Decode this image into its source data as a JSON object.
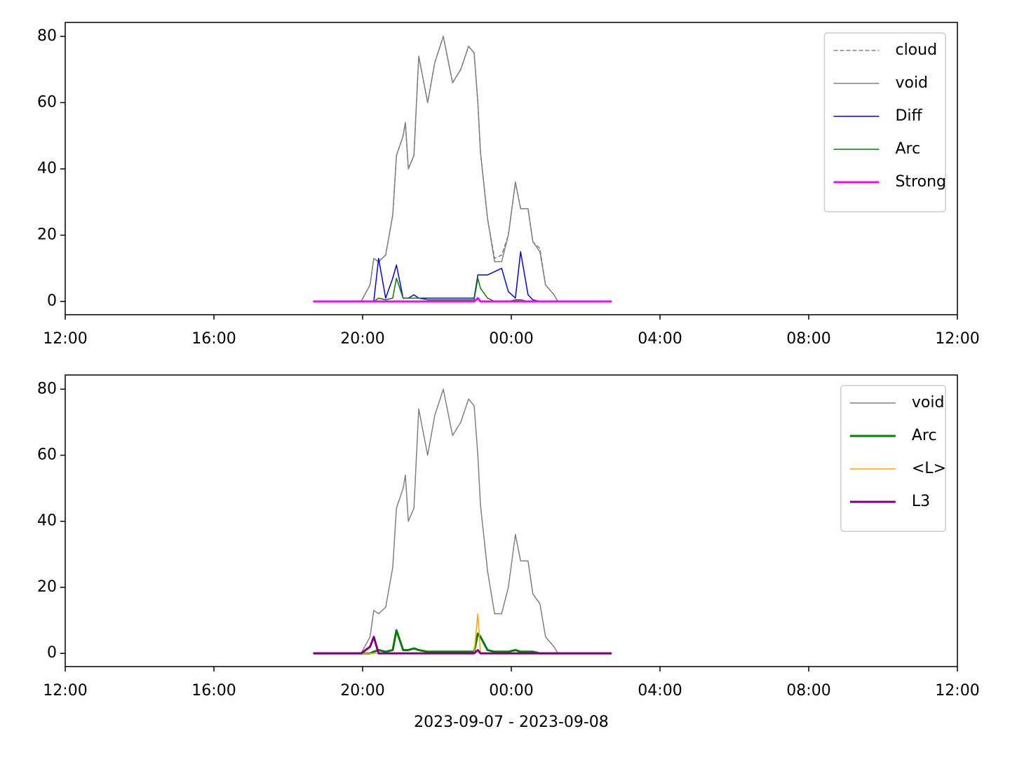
{
  "chart_data": [
    {
      "type": "line",
      "x": [
        18.67,
        19.5,
        19.96,
        20.2,
        20.3,
        20.43,
        20.62,
        20.81,
        20.91,
        21.09,
        21.15,
        21.23,
        21.38,
        21.51,
        21.75,
        21.94,
        22.17,
        22.42,
        22.64,
        22.85,
        23.0,
        23.1,
        23.17,
        23.36,
        23.55,
        23.74,
        23.92,
        24.11,
        24.25,
        24.45,
        24.58,
        24.77,
        24.92,
        25.15,
        25.25,
        26.7
      ],
      "series": [
        {
          "name": "cloud",
          "color": "#808080",
          "linestyle": "dashed",
          "linewidth": 1.5,
          "values": [
            0,
            0,
            0,
            5,
            13,
            12,
            14,
            26,
            44,
            50,
            54,
            40,
            44,
            74,
            60,
            72,
            80,
            66,
            70,
            77,
            75,
            60,
            45,
            25,
            13,
            14,
            20,
            36,
            28,
            28,
            18,
            16,
            5,
            2,
            0,
            0
          ]
        },
        {
          "name": "void",
          "color": "#808080",
          "linestyle": "solid",
          "linewidth": 1.5,
          "values": [
            0,
            0,
            0,
            5,
            13,
            12,
            14,
            26,
            44,
            50,
            54,
            40,
            44,
            74,
            60,
            72,
            80,
            66,
            70,
            77,
            75,
            60,
            45,
            25,
            12,
            12,
            20,
            36,
            28,
            28,
            18,
            15,
            5,
            2,
            0,
            0
          ]
        },
        {
          "name": "Diff",
          "color": "#0000ff",
          "linestyle": "solid",
          "linewidth": 1.5,
          "values": [
            0,
            0,
            0,
            0,
            0,
            13,
            1,
            7,
            11,
            1,
            1,
            1,
            2,
            1,
            1,
            1,
            1,
            1,
            1,
            1,
            1,
            8,
            8,
            8,
            9,
            10,
            3,
            1,
            15,
            2,
            0.5,
            0,
            0,
            0,
            0,
            0
          ]
        },
        {
          "name": "Arc",
          "color": "#008000",
          "linestyle": "solid",
          "linewidth": 1.5,
          "values": [
            0,
            0,
            0,
            0,
            0,
            1,
            0.5,
            1,
            7,
            1,
            1,
            1,
            1,
            1,
            0.5,
            0.5,
            0.5,
            0.5,
            0.5,
            0.5,
            0.5,
            7,
            4,
            1,
            0,
            0,
            0,
            0.5,
            0.5,
            0,
            0,
            0,
            0,
            0,
            0,
            0
          ]
        },
        {
          "name": "Strong",
          "color": "#ff00ff",
          "linestyle": "solid",
          "linewidth": 3,
          "values": [
            0,
            0,
            0,
            0,
            0,
            0,
            0,
            0,
            0,
            0,
            0,
            0,
            0,
            0,
            0,
            0,
            0,
            0,
            0,
            0,
            0,
            1,
            0,
            0,
            0,
            0,
            0,
            0,
            0,
            0,
            0,
            0,
            0,
            0,
            0,
            0
          ]
        }
      ],
      "xlim": [
        12,
        36
      ],
      "xticks": [
        {
          "value": 12,
          "label": "12:00"
        },
        {
          "value": 16,
          "label": "16:00"
        },
        {
          "value": 20,
          "label": "20:00"
        },
        {
          "value": 24,
          "label": "00:00"
        },
        {
          "value": 28,
          "label": "04:00"
        },
        {
          "value": 32,
          "label": "08:00"
        },
        {
          "value": 36,
          "label": "12:00"
        }
      ],
      "ylim": [
        -4,
        84.2
      ],
      "yticks": [
        0,
        20,
        40,
        60,
        80
      ],
      "legend": "upper right"
    },
    {
      "type": "line",
      "x": [
        18.67,
        19.5,
        19.96,
        20.2,
        20.3,
        20.43,
        20.62,
        20.81,
        20.91,
        21.09,
        21.15,
        21.23,
        21.38,
        21.51,
        21.75,
        21.94,
        22.17,
        22.42,
        22.64,
        22.85,
        23.0,
        23.1,
        23.17,
        23.36,
        23.55,
        23.74,
        23.92,
        24.11,
        24.25,
        24.45,
        24.58,
        24.77,
        24.92,
        25.15,
        25.25,
        26.7
      ],
      "series": [
        {
          "name": "void",
          "color": "#808080",
          "linestyle": "solid",
          "linewidth": 1.5,
          "values": [
            0,
            0,
            0,
            5,
            13,
            12,
            14,
            26,
            44,
            50,
            54,
            40,
            44,
            74,
            60,
            72,
            80,
            66,
            70,
            77,
            75,
            60,
            45,
            25,
            12,
            12,
            20,
            36,
            28,
            28,
            18,
            15,
            5,
            2,
            0,
            0
          ]
        },
        {
          "name": "Arc",
          "color": "#008000",
          "linestyle": "solid",
          "linewidth": 3,
          "values": [
            0,
            0,
            0,
            0,
            0.5,
            1,
            0.5,
            1,
            7,
            1,
            1,
            1,
            1.5,
            1,
            0.5,
            0.5,
            0.5,
            0.5,
            0.5,
            0.5,
            0.5,
            6,
            5,
            1,
            0.5,
            0.5,
            0.5,
            1,
            0.5,
            0.5,
            0.5,
            0,
            0,
            0,
            0,
            0
          ]
        },
        {
          "name": "<L>",
          "color": "#ffa500",
          "linestyle": "solid",
          "linewidth": 1.5,
          "values": [
            0,
            0,
            0,
            0,
            0,
            0,
            0,
            0,
            0,
            0,
            0,
            0,
            0,
            0,
            0,
            0,
            0,
            0,
            0,
            0,
            0,
            12,
            0,
            0,
            0,
            0,
            0,
            0,
            0,
            0,
            0,
            0,
            0,
            0,
            0,
            0
          ]
        },
        {
          "name": "L3",
          "color": "#800080",
          "linestyle": "solid",
          "linewidth": 3,
          "values": [
            0,
            0,
            0,
            2,
            5,
            0,
            0,
            0,
            0,
            0,
            0,
            0,
            0,
            0,
            0,
            0,
            0,
            0,
            0,
            0,
            0,
            1,
            0,
            0,
            0,
            0,
            0,
            0,
            0,
            0,
            0,
            0,
            0,
            0,
            0,
            0
          ]
        }
      ],
      "xlabel": "2023-09-07 - 2023-09-08",
      "xlim": [
        12,
        36
      ],
      "xticks": [
        {
          "value": 12,
          "label": "12:00"
        },
        {
          "value": 16,
          "label": "16:00"
        },
        {
          "value": 20,
          "label": "20:00"
        },
        {
          "value": 24,
          "label": "00:00"
        },
        {
          "value": 28,
          "label": "04:00"
        },
        {
          "value": 32,
          "label": "08:00"
        },
        {
          "value": 36,
          "label": "12:00"
        }
      ],
      "ylim": [
        -4,
        84.3
      ],
      "yticks": [
        0,
        20,
        40,
        60,
        80
      ],
      "legend": "upper right"
    }
  ]
}
